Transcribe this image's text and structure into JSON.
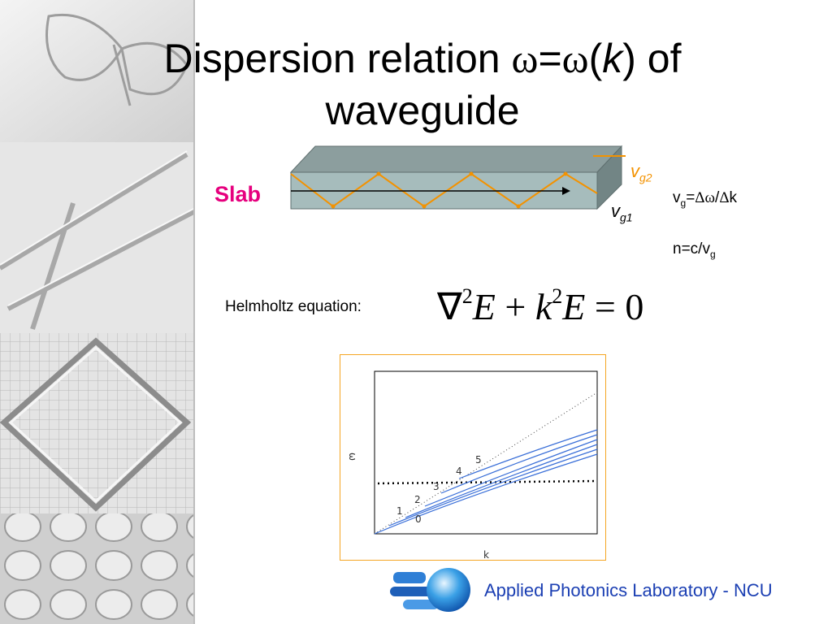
{
  "title": {
    "line1_pre": "Dispersion relation ",
    "omega1": "ω",
    "equals": "=",
    "omega2": "ω",
    "open_paren": "(",
    "k": "k",
    "close_paren": ") of",
    "line2": "waveguide"
  },
  "slab": {
    "label": "Slab",
    "label_color": "#e6007e",
    "ray_color": "#f39200"
  },
  "vg2": {
    "v": "v",
    "sub": "g2"
  },
  "vg1": {
    "v": "v",
    "sub": "g1"
  },
  "group_velocity_eq": {
    "v": "v",
    "sub": "g",
    "rest_pre": "=",
    "delta1": "Δ",
    "omega": "ω",
    "slash": "/",
    "delta2": "Δ",
    "k": "k"
  },
  "index_eq": {
    "pre": "n=c/v",
    "sub": "g"
  },
  "helmholtz": {
    "label": "Helmholtz equation:",
    "nabla": "∇",
    "exp1": "2",
    "E1": "E",
    "plus": " + ",
    "k": "k",
    "exp2": "2",
    "E2": "E",
    "equals": " = ",
    "zero": "0"
  },
  "chart_data": {
    "type": "line",
    "xlabel": "k",
    "ylabel": "ω",
    "mode_labels": [
      "0",
      "1",
      "2",
      "3",
      "4",
      "5"
    ],
    "series": [
      {
        "name": "0",
        "style": "solid"
      },
      {
        "name": "1",
        "style": "solid"
      },
      {
        "name": "2",
        "style": "solid"
      },
      {
        "name": "3",
        "style": "solid"
      },
      {
        "name": "4",
        "style": "solid"
      },
      {
        "name": "5",
        "style": "solid"
      }
    ],
    "light_line": "dotted",
    "cutoff_line": "dotted-horizontal",
    "line_color": "#3a6fd8"
  },
  "footer": {
    "text": "Applied Photonics Laboratory - NCU",
    "text_color": "#1b3fb3"
  }
}
